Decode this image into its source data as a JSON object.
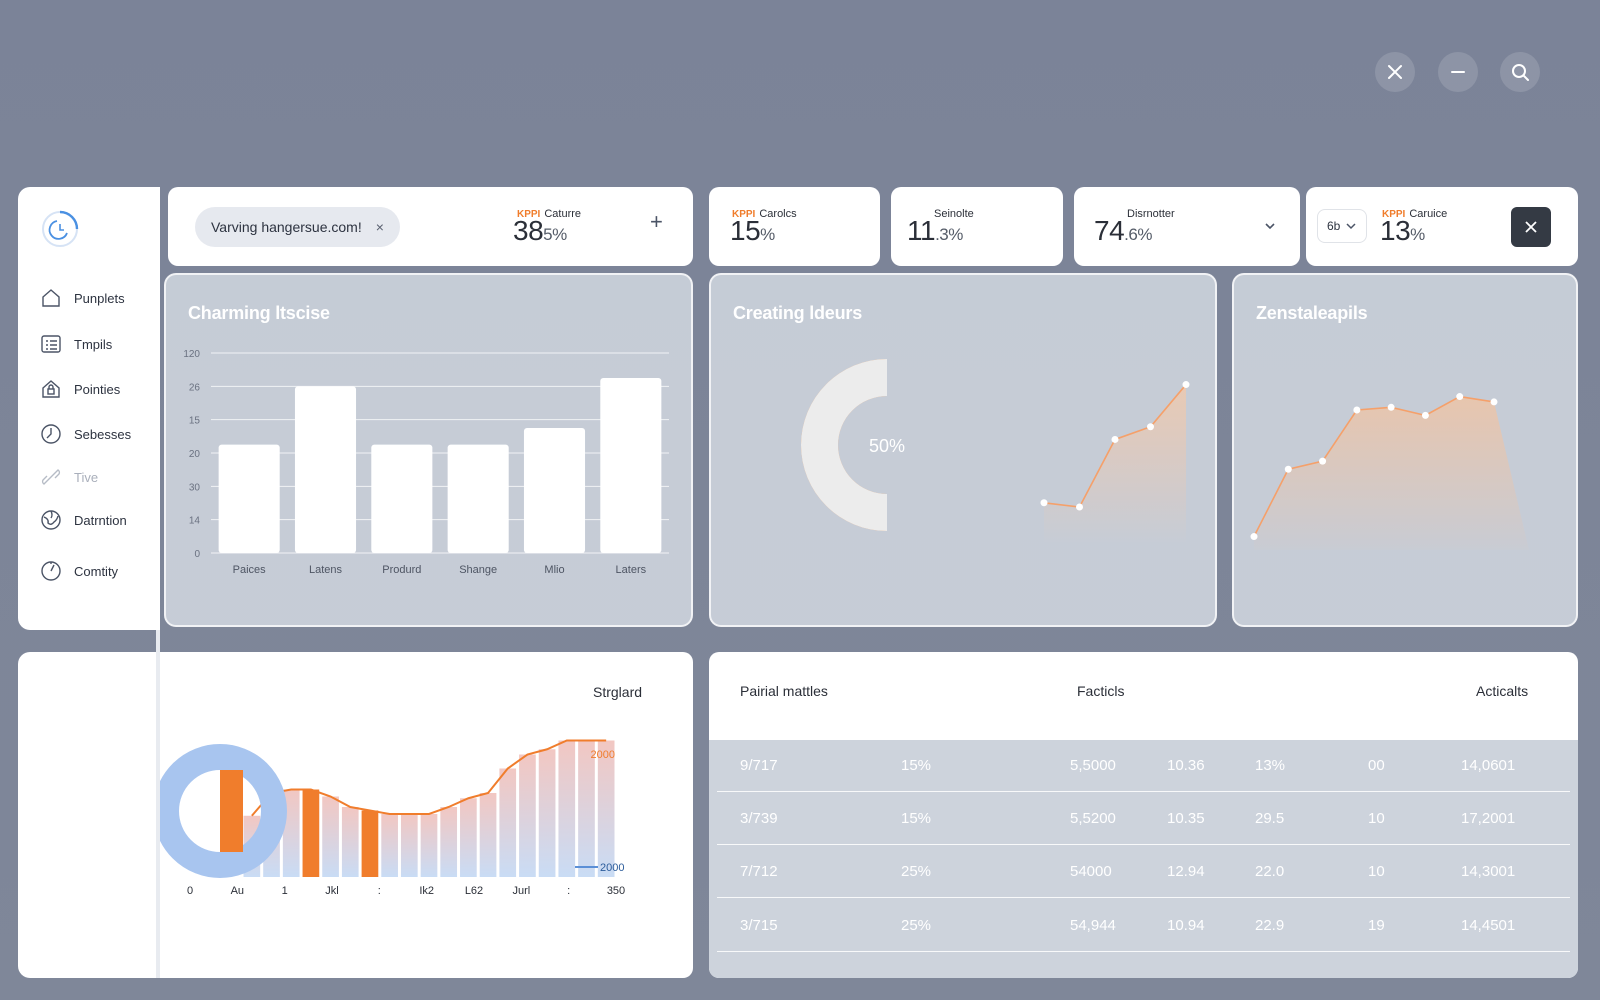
{
  "window_controls": {
    "close_icon": "close-icon",
    "minimize_icon": "minimize-icon",
    "search_icon": "search-icon"
  },
  "sidebar": {
    "items": [
      {
        "label": "Punplets",
        "icon": "home-icon"
      },
      {
        "label": "Tmpils",
        "icon": "list-icon"
      },
      {
        "label": "Pointies",
        "icon": "house-lock-icon"
      },
      {
        "label": "Sebesses",
        "icon": "clock-icon"
      },
      {
        "label": "Tive",
        "icon": "link-icon"
      },
      {
        "label": "Datrntion",
        "icon": "globe-icon"
      },
      {
        "label": "Comtity",
        "icon": "gauge-icon"
      }
    ]
  },
  "topbar": {
    "chip_text": "Varving hangersue.com!",
    "chip_close": "×",
    "kpi": {
      "accent": "KPPI",
      "label": "Caturre",
      "value": "38",
      "unit": "5%"
    },
    "add": "+"
  },
  "kpis": [
    {
      "accent": "KPPI",
      "label": "Carolcs",
      "value": "15",
      "unit": "%"
    },
    {
      "accent": "",
      "label": "Seinolte",
      "value": "11",
      "unit": ".3%"
    },
    {
      "accent": "",
      "label": "Disrnotter",
      "value": "74",
      "unit": ".6%"
    },
    {
      "accent": "KPPI",
      "label": "Caruice",
      "value": "13",
      "unit": "%"
    }
  ],
  "kpi_select": {
    "value": "6b"
  },
  "panels": {
    "bar_title": "Charming ltscise",
    "donut_title": "Creating ldeurs",
    "area_title": "Zenstaleapils",
    "bottom_chart_label": "Strglard"
  },
  "chart_data": [
    {
      "type": "bar",
      "title": "Charming ltscise",
      "categories": [
        "Paices",
        "Latens",
        "Produrd",
        "Shange",
        "Mlio",
        "Laters"
      ],
      "values": [
        65,
        100,
        65,
        65,
        75,
        105
      ],
      "tick_labels": [
        "0",
        "14",
        "30",
        "20",
        "15",
        "26",
        "120"
      ],
      "ylim": [
        0,
        120
      ],
      "grid": true
    },
    {
      "type": "pie",
      "title": "Creating ldeurs",
      "center_label": "50%",
      "slices": [
        {
          "value": 50,
          "color": "#f8a665"
        },
        {
          "value": 50,
          "color": "#ececec"
        }
      ]
    },
    {
      "type": "line",
      "title": "Creating ldeurs",
      "x": [
        1,
        2,
        3,
        4,
        5
      ],
      "y": [
        10,
        9,
        25,
        28,
        38
      ],
      "ylim": [
        0,
        45
      ]
    },
    {
      "type": "area",
      "title": "Zenstaleapils",
      "x": [
        1,
        2,
        3,
        4,
        5,
        6,
        7,
        8
      ],
      "y": [
        5,
        30,
        33,
        52,
        53,
        50,
        57,
        55
      ],
      "ylim": [
        0,
        65
      ]
    },
    {
      "type": "bar",
      "title": "Strglard",
      "x_ticks": [
        "0",
        "Au",
        "1",
        "Jkl",
        ":",
        "Ik2",
        "L62",
        "Jurl",
        ":",
        "350"
      ],
      "values": [
        35,
        48,
        50,
        50,
        46,
        40,
        38,
        36,
        36,
        36,
        40,
        45,
        48,
        62,
        70,
        73,
        78,
        78,
        78
      ],
      "highlight_indexes": [
        3,
        6
      ],
      "line_label": "2000",
      "legend_label": "2000"
    }
  ],
  "table": {
    "headers": [
      "Pairial mattles",
      "Facticls",
      "Acticalts"
    ],
    "rows": [
      [
        "9/717",
        "15%",
        "5,5000",
        "10.36",
        "13%",
        "00",
        "14,0601"
      ],
      [
        "3/739",
        "15%",
        "5,5200",
        "10.35",
        "29.5",
        "10",
        "17,2001"
      ],
      [
        "7/712",
        "25%",
        "54000",
        "12.94",
        "22.0",
        "10",
        "14,3001"
      ],
      [
        "3/715",
        "25%",
        "54,944",
        "10.94",
        "22.9",
        "19",
        "14,4501"
      ]
    ]
  },
  "colors": {
    "accent": "#f07d2c",
    "accent_soft": "#f8a665",
    "blue": "#5b8fd6",
    "blue_soft": "#a8c5ef",
    "dark": "#2d3340"
  }
}
